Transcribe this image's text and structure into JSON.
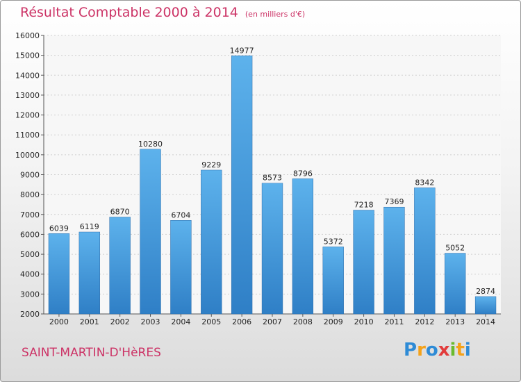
{
  "header": {
    "title": "Résultat Comptable 2000 à 2014",
    "subtitle": "(en milliers d'€)"
  },
  "footer": {
    "city": "SAINT-MARTIN-D'HèRES",
    "logo": {
      "letters": [
        "P",
        "r",
        "o",
        "x",
        "i",
        "t",
        "i"
      ],
      "colors": [
        "#2e8bd6",
        "#f4a21a",
        "#2e8bd6",
        "#e23b3b",
        "#6aba2e",
        "#f4a21a",
        "#2e8bd6"
      ]
    }
  },
  "chart_data": {
    "type": "bar",
    "title": "Résultat Comptable 2000 à 2014",
    "subtitle": "(en milliers d'€)",
    "categories": [
      "2000",
      "2001",
      "2002",
      "2003",
      "2004",
      "2005",
      "2006",
      "2007",
      "2008",
      "2009",
      "2010",
      "2011",
      "2012",
      "2013",
      "2014"
    ],
    "values": [
      6039,
      6119,
      6870,
      10280,
      6704,
      9229,
      14977,
      8573,
      8796,
      5372,
      7218,
      7369,
      8342,
      5052,
      2874
    ],
    "ylim": [
      2000,
      16000
    ],
    "yticks": [
      2000,
      3000,
      4000,
      5000,
      6000,
      7000,
      8000,
      9000,
      10000,
      11000,
      12000,
      13000,
      14000,
      15000,
      16000
    ],
    "grid": true,
    "bar_color": "#4a9fe0"
  }
}
